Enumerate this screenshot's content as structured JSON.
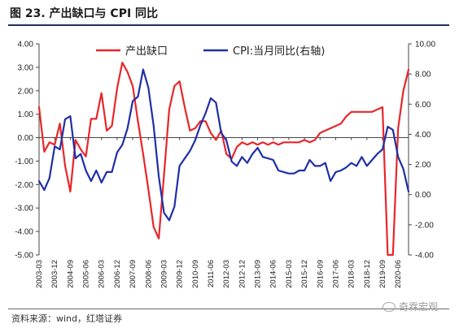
{
  "figure": {
    "title": "图 23. 产出缺口与 CPI 同比",
    "source": "资料来源：wind，红塔证券",
    "watermark": "奇霖宏观"
  },
  "chart_data": {
    "type": "line",
    "x": [
      "2003-03",
      "2003-06",
      "2003-09",
      "2003-12",
      "2004-03",
      "2004-06",
      "2004-09",
      "2004-12",
      "2005-03",
      "2005-06",
      "2005-09",
      "2005-12",
      "2006-03",
      "2006-06",
      "2006-09",
      "2006-12",
      "2007-03",
      "2007-06",
      "2007-09",
      "2007-12",
      "2008-03",
      "2008-06",
      "2008-09",
      "2008-12",
      "2009-03",
      "2009-06",
      "2009-09",
      "2009-12",
      "2010-03",
      "2010-06",
      "2010-09",
      "2010-12",
      "2011-03",
      "2011-06",
      "2011-09",
      "2011-12",
      "2012-03",
      "2012-06",
      "2012-09",
      "2012-12",
      "2013-03",
      "2013-06",
      "2013-09",
      "2013-12",
      "2014-03",
      "2014-06",
      "2014-09",
      "2014-12",
      "2015-03",
      "2015-06",
      "2015-09",
      "2015-12",
      "2016-03",
      "2016-06",
      "2016-09",
      "2016-12",
      "2017-03",
      "2017-06",
      "2017-09",
      "2017-12",
      "2018-03",
      "2018-06",
      "2018-09",
      "2018-12",
      "2019-03",
      "2019-06",
      "2019-09",
      "2019-12",
      "2020-03",
      "2020-06",
      "2020-09",
      "2020-12"
    ],
    "x_tick_labels": [
      "2003-03",
      "2003-12",
      "2004-09",
      "2005-06",
      "2006-03",
      "2006-12",
      "2007-09",
      "2008-06",
      "2009-03",
      "2009-12",
      "2010-09",
      "2011-06",
      "2012-03",
      "2012-12",
      "2013-09",
      "2014-06",
      "2015-03",
      "2015-12",
      "2016-09",
      "2017-06",
      "2018-03",
      "2018-12",
      "2019-09",
      "2020-06"
    ],
    "left_axis": {
      "ylim": [
        -5,
        4
      ],
      "ticks": [
        "-5.00",
        "-4.00",
        "-3.00",
        "-2.00",
        "-1.00",
        "0.00",
        "1.00",
        "2.00",
        "3.00",
        "4.00"
      ]
    },
    "right_axis": {
      "ylim": [
        -4,
        10
      ],
      "ticks": [
        "-4.00",
        "-2.00",
        "0.00",
        "2.00",
        "4.00",
        "6.00",
        "8.00",
        "10.00"
      ]
    },
    "series": [
      {
        "name": "产出缺口",
        "axis": "left",
        "color": "#e8262a",
        "values": [
          1.3,
          -0.6,
          -0.2,
          -0.3,
          0.6,
          -1.2,
          -2.3,
          -0.1,
          -0.5,
          -0.8,
          0.8,
          0.8,
          1.9,
          0.3,
          0.5,
          2.1,
          3.2,
          2.8,
          2.2,
          0.7,
          -0.7,
          -2.2,
          -3.8,
          -4.3,
          -1.6,
          1.2,
          2.2,
          2.4,
          1.3,
          0.3,
          0.4,
          0.7,
          0.7,
          0.2,
          -0.1,
          0.3,
          -0.7,
          -0.9,
          -0.4,
          -0.2,
          -0.3,
          -0.2,
          -0.3,
          -0.2,
          -0.3,
          -0.2,
          -0.3,
          -0.2,
          -0.2,
          -0.2,
          -0.2,
          -0.1,
          -0.2,
          -0.1,
          0.2,
          0.3,
          0.4,
          0.5,
          0.6,
          0.9,
          1.1,
          1.1,
          1.1,
          1.1,
          1.1,
          1.2,
          1.3,
          -5.0,
          -5.0,
          0.4,
          2.0,
          2.9
        ]
      },
      {
        "name": "CPI:当月同比(右轴)",
        "axis": "right",
        "color": "#1f2fa8",
        "values": [
          0.9,
          0.3,
          1.1,
          3.2,
          3.0,
          5.0,
          5.2,
          2.4,
          2.7,
          1.6,
          0.9,
          1.6,
          0.8,
          1.5,
          1.5,
          2.8,
          3.3,
          4.4,
          6.2,
          6.5,
          8.3,
          7.1,
          4.6,
          1.2,
          -1.2,
          -1.7,
          -0.8,
          1.9,
          2.4,
          2.9,
          3.6,
          4.6,
          5.4,
          6.4,
          6.1,
          4.1,
          3.6,
          2.2,
          1.9,
          2.5,
          2.1,
          2.7,
          3.1,
          2.5,
          2.4,
          2.3,
          1.6,
          1.5,
          1.4,
          1.4,
          1.6,
          1.6,
          2.3,
          1.9,
          1.9,
          2.1,
          0.9,
          1.5,
          1.6,
          1.8,
          2.1,
          1.9,
          2.5,
          1.9,
          2.3,
          2.7,
          3.0,
          4.5,
          4.3,
          2.5,
          1.7,
          0.2
        ]
      }
    ],
    "legend": "top",
    "grid": false
  }
}
